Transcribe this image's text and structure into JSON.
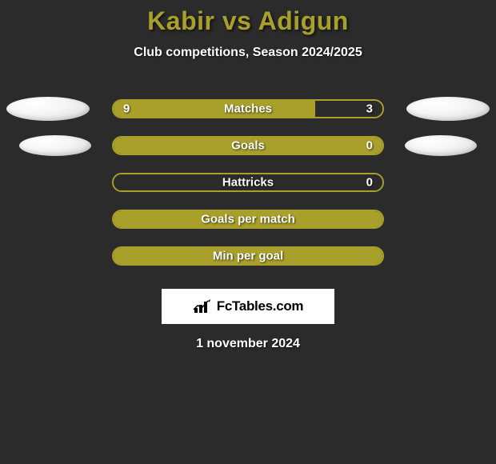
{
  "title": "Kabir vs Adigun",
  "subtitle": "Club competitions, Season 2024/2025",
  "date": "1 november 2024",
  "logo_text": "FcTables.com",
  "colors": {
    "bg": "#2b2b2b",
    "olive": "#a8a02a",
    "text": "#ffffff",
    "logo_bg": "#ffffff",
    "logo_text": "#000000"
  },
  "stats": [
    {
      "label": "Matches",
      "left_val": "9",
      "right_val": "3",
      "left_pct": 75,
      "right_pct": 25,
      "left_color": "olive",
      "right_color": "dark",
      "big_ovals": true
    },
    {
      "label": "Goals",
      "left_val": "",
      "right_val": "0",
      "left_pct": 100,
      "right_pct": 0,
      "left_color": "olive",
      "right_color": "dark",
      "big_ovals": false
    },
    {
      "label": "Hattricks",
      "left_val": "",
      "right_val": "0",
      "left_pct": 0,
      "right_pct": 100,
      "left_color": "olive",
      "right_color": "dark",
      "big_ovals": null
    },
    {
      "label": "Goals per match",
      "left_val": "",
      "right_val": "",
      "left_pct": 100,
      "right_pct": 0,
      "left_color": "olive",
      "right_color": "dark",
      "big_ovals": null
    },
    {
      "label": "Min per goal",
      "left_val": "",
      "right_val": "",
      "left_pct": 100,
      "right_pct": 0,
      "left_color": "olive",
      "right_color": "dark",
      "big_ovals": null
    }
  ]
}
